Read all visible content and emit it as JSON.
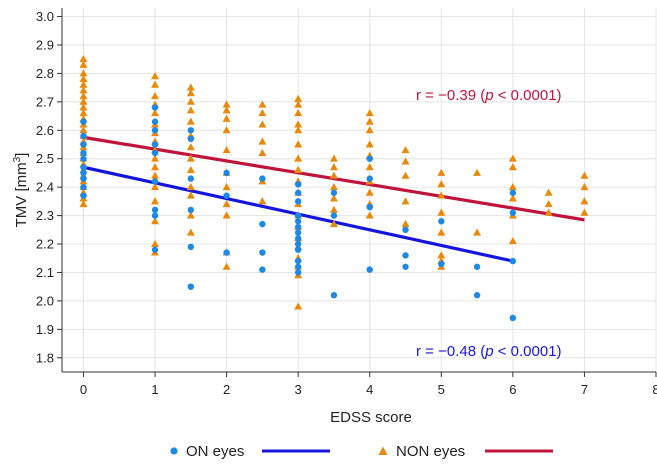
{
  "chart_data": {
    "type": "scatter",
    "xlabel": "EDSS score",
    "ylabel": "TMV [mm",
    "ylabel_sup": "3",
    "ylabel_close": "]",
    "xlim": [
      -0.3,
      8
    ],
    "ylim": [
      1.75,
      3.03
    ],
    "xticks": [
      "0",
      "1",
      "2",
      "3",
      "4",
      "5",
      "6",
      "7",
      "8"
    ],
    "yticks": [
      "1.8",
      "1.9",
      "2.0",
      "2.1",
      "2.2",
      "2.3",
      "2.4",
      "2.5",
      "2.6",
      "2.7",
      "2.8",
      "2.9",
      "3.0"
    ],
    "grid": true,
    "legend_placement": "bottom",
    "series": [
      {
        "name": "ON eyes",
        "marker": "circle",
        "color": "#1e88e5",
        "fit_color": "#1515e0",
        "fit": {
          "x": [
            0,
            6
          ],
          "y": [
            2.47,
            2.14
          ]
        },
        "points": [
          [
            0,
            2.63
          ],
          [
            0,
            2.58
          ],
          [
            0,
            2.55
          ],
          [
            0,
            2.52
          ],
          [
            0,
            2.5
          ],
          [
            0,
            2.47
          ],
          [
            0,
            2.45
          ],
          [
            0,
            2.43
          ],
          [
            0,
            2.4
          ],
          [
            0,
            2.37
          ],
          [
            1,
            2.68
          ],
          [
            1,
            2.63
          ],
          [
            1,
            2.6
          ],
          [
            1,
            2.55
          ],
          [
            1,
            2.52
          ],
          [
            1,
            2.42
          ],
          [
            1,
            2.32
          ],
          [
            1,
            2.3
          ],
          [
            1,
            2.18
          ],
          [
            1.5,
            2.6
          ],
          [
            1.5,
            2.57
          ],
          [
            1.5,
            2.43
          ],
          [
            1.5,
            2.32
          ],
          [
            1.5,
            2.19
          ],
          [
            1.5,
            2.05
          ],
          [
            2,
            2.45
          ],
          [
            2,
            2.37
          ],
          [
            2,
            2.17
          ],
          [
            2.5,
            2.43
          ],
          [
            2.5,
            2.27
          ],
          [
            2.5,
            2.17
          ],
          [
            2.5,
            2.11
          ],
          [
            3,
            2.41
          ],
          [
            3,
            2.38
          ],
          [
            3,
            2.35
          ],
          [
            3,
            2.3
          ],
          [
            3,
            2.28
          ],
          [
            3,
            2.26
          ],
          [
            3,
            2.24
          ],
          [
            3,
            2.22
          ],
          [
            3,
            2.2
          ],
          [
            3,
            2.18
          ],
          [
            3,
            2.14
          ],
          [
            3,
            2.12
          ],
          [
            3,
            2.1
          ],
          [
            3.5,
            2.38
          ],
          [
            3.5,
            2.3
          ],
          [
            3.5,
            2.02
          ],
          [
            4,
            2.5
          ],
          [
            4,
            2.43
          ],
          [
            4,
            2.33
          ],
          [
            4,
            2.11
          ],
          [
            4.5,
            2.25
          ],
          [
            4.5,
            2.16
          ],
          [
            4.5,
            2.12
          ],
          [
            5,
            2.28
          ],
          [
            5,
            2.13
          ],
          [
            5.5,
            2.12
          ],
          [
            5.5,
            2.02
          ],
          [
            6,
            2.38
          ],
          [
            6,
            2.31
          ],
          [
            6,
            2.14
          ],
          [
            6,
            1.94
          ]
        ],
        "annotation": {
          "prefix": "r = −0.48 (",
          "p": "p",
          "suffix": " < 0.0001)"
        }
      },
      {
        "name": "NON eyes",
        "marker": "triangle",
        "color": "#e8890c",
        "fit_color": "#c0143c",
        "fit": {
          "x": [
            0,
            7
          ],
          "y": [
            2.575,
            2.285
          ]
        },
        "points": [
          [
            0,
            2.85
          ],
          [
            0,
            2.83
          ],
          [
            0,
            2.8
          ],
          [
            0,
            2.78
          ],
          [
            0,
            2.76
          ],
          [
            0,
            2.74
          ],
          [
            0,
            2.72
          ],
          [
            0,
            2.7
          ],
          [
            0,
            2.68
          ],
          [
            0,
            2.66
          ],
          [
            0,
            2.64
          ],
          [
            0,
            2.62
          ],
          [
            0,
            2.6
          ],
          [
            0,
            2.58
          ],
          [
            0,
            2.56
          ],
          [
            0,
            2.54
          ],
          [
            0,
            2.52
          ],
          [
            0,
            2.5
          ],
          [
            0,
            2.48
          ],
          [
            0,
            2.46
          ],
          [
            0,
            2.44
          ],
          [
            0,
            2.42
          ],
          [
            0,
            2.4
          ],
          [
            0,
            2.38
          ],
          [
            0,
            2.36
          ],
          [
            0,
            2.34
          ],
          [
            1,
            2.79
          ],
          [
            1,
            2.76
          ],
          [
            1,
            2.72
          ],
          [
            1,
            2.69
          ],
          [
            1,
            2.66
          ],
          [
            1,
            2.62
          ],
          [
            1,
            2.59
          ],
          [
            1,
            2.56
          ],
          [
            1,
            2.53
          ],
          [
            1,
            2.5
          ],
          [
            1,
            2.47
          ],
          [
            1,
            2.44
          ],
          [
            1,
            2.4
          ],
          [
            1,
            2.35
          ],
          [
            1,
            2.28
          ],
          [
            1,
            2.2
          ],
          [
            1,
            2.17
          ],
          [
            1.5,
            2.75
          ],
          [
            1.5,
            2.73
          ],
          [
            1.5,
            2.7
          ],
          [
            1.5,
            2.67
          ],
          [
            1.5,
            2.63
          ],
          [
            1.5,
            2.58
          ],
          [
            1.5,
            2.54
          ],
          [
            1.5,
            2.5
          ],
          [
            1.5,
            2.46
          ],
          [
            1.5,
            2.4
          ],
          [
            1.5,
            2.37
          ],
          [
            1.5,
            2.3
          ],
          [
            1.5,
            2.24
          ],
          [
            2,
            2.69
          ],
          [
            2,
            2.67
          ],
          [
            2,
            2.64
          ],
          [
            2,
            2.6
          ],
          [
            2,
            2.53
          ],
          [
            2,
            2.45
          ],
          [
            2,
            2.4
          ],
          [
            2,
            2.34
          ],
          [
            2,
            2.3
          ],
          [
            2,
            2.17
          ],
          [
            2,
            2.12
          ],
          [
            2.5,
            2.69
          ],
          [
            2.5,
            2.66
          ],
          [
            2.5,
            2.62
          ],
          [
            2.5,
            2.56
          ],
          [
            2.5,
            2.52
          ],
          [
            2.5,
            2.42
          ],
          [
            2.5,
            2.35
          ],
          [
            3,
            2.71
          ],
          [
            3,
            2.69
          ],
          [
            3,
            2.66
          ],
          [
            3,
            2.62
          ],
          [
            3,
            2.6
          ],
          [
            3,
            2.55
          ],
          [
            3,
            2.5
          ],
          [
            3,
            2.46
          ],
          [
            3,
            2.42
          ],
          [
            3,
            2.38
          ],
          [
            3,
            2.34
          ],
          [
            3,
            2.3
          ],
          [
            3,
            2.26
          ],
          [
            3,
            2.22
          ],
          [
            3,
            2.19
          ],
          [
            3,
            2.15
          ],
          [
            3,
            2.12
          ],
          [
            3,
            2.09
          ],
          [
            3,
            1.98
          ],
          [
            3.5,
            2.5
          ],
          [
            3.5,
            2.47
          ],
          [
            3.5,
            2.44
          ],
          [
            3.5,
            2.4
          ],
          [
            3.5,
            2.36
          ],
          [
            3.5,
            2.32
          ],
          [
            3.5,
            2.27
          ],
          [
            4,
            2.66
          ],
          [
            4,
            2.63
          ],
          [
            4,
            2.6
          ],
          [
            4,
            2.55
          ],
          [
            4,
            2.51
          ],
          [
            4,
            2.47
          ],
          [
            4,
            2.42
          ],
          [
            4,
            2.38
          ],
          [
            4,
            2.34
          ],
          [
            4,
            2.3
          ],
          [
            4.5,
            2.53
          ],
          [
            4.5,
            2.49
          ],
          [
            4.5,
            2.44
          ],
          [
            4.5,
            2.35
          ],
          [
            4.5,
            2.27
          ],
          [
            5,
            2.45
          ],
          [
            5,
            2.41
          ],
          [
            5,
            2.37
          ],
          [
            5,
            2.31
          ],
          [
            5,
            2.24
          ],
          [
            5,
            2.16
          ],
          [
            5,
            2.14
          ],
          [
            5,
            2.12
          ],
          [
            5.5,
            2.45
          ],
          [
            5.5,
            2.24
          ],
          [
            6,
            2.5
          ],
          [
            6,
            2.47
          ],
          [
            6,
            2.4
          ],
          [
            6,
            2.36
          ],
          [
            6,
            2.3
          ],
          [
            6,
            2.21
          ],
          [
            6.5,
            2.38
          ],
          [
            6.5,
            2.34
          ],
          [
            6.5,
            2.31
          ],
          [
            7,
            2.44
          ],
          [
            7,
            2.4
          ],
          [
            7,
            2.35
          ],
          [
            7,
            2.31
          ]
        ],
        "annotation": {
          "prefix": "r = −0.39 (",
          "p": "p",
          "suffix": " < 0.0001)"
        }
      }
    ]
  }
}
